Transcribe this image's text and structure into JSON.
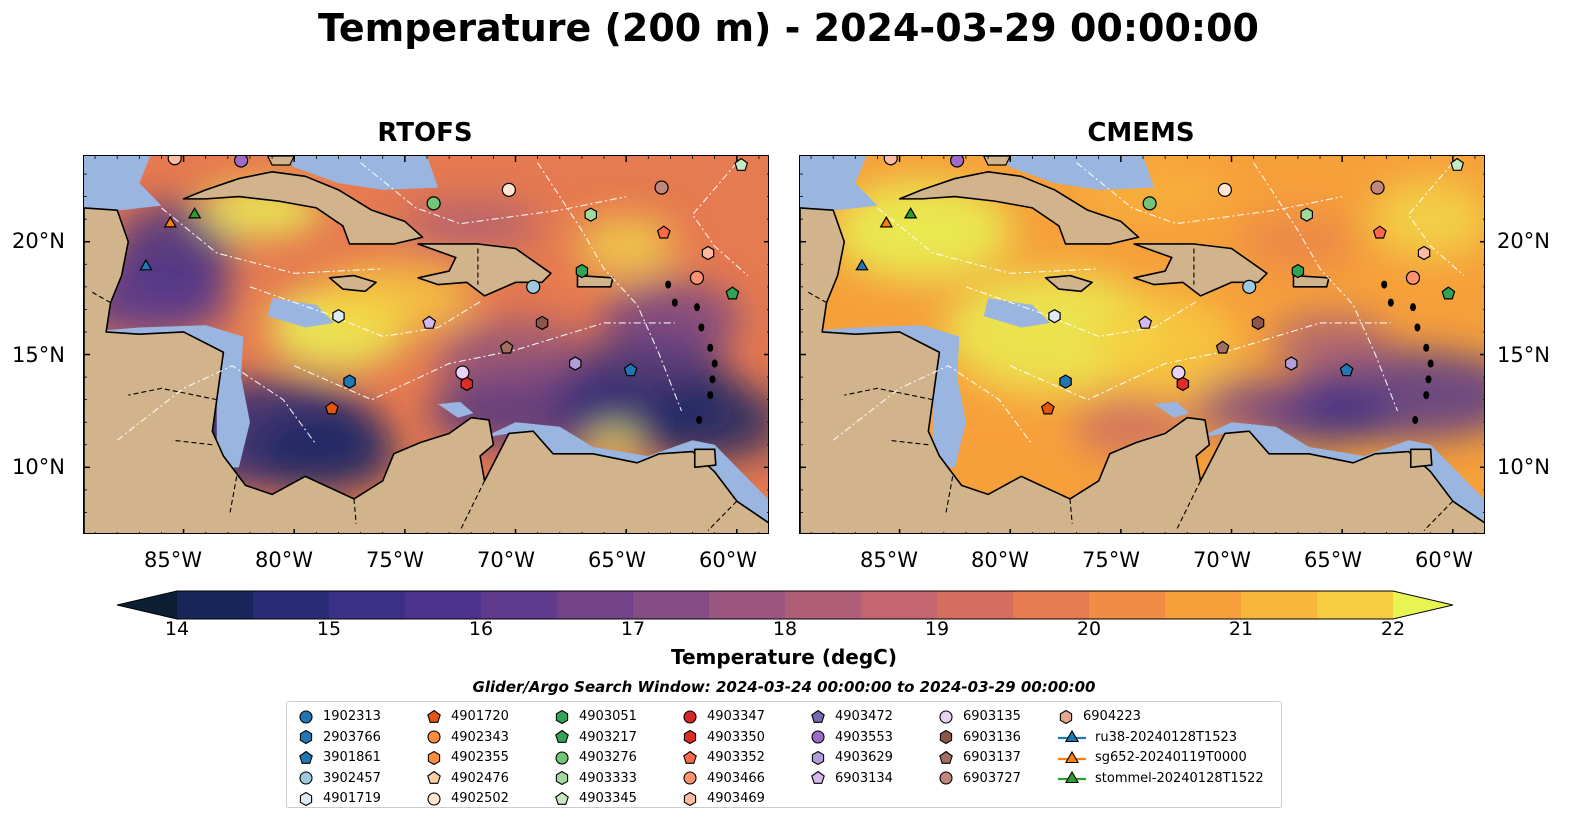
{
  "title": "Temperature (200 m) - 2024-03-29 00:00:00",
  "panels": [
    {
      "title": "RTOFS"
    },
    {
      "title": "CMEMS"
    }
  ],
  "axes": {
    "lat_labels": [
      "20°N",
      "15°N",
      "10°N"
    ],
    "lon_labels": [
      "85°W",
      "80°W",
      "75°W",
      "70°W",
      "65°W",
      "60°W"
    ]
  },
  "colorbar": {
    "label": "Temperature (degC)",
    "ticks": [
      "14",
      "15",
      "16",
      "17",
      "18",
      "19",
      "20",
      "21",
      "22"
    ],
    "colors": [
      "#0b1e33",
      "#17265a",
      "#272c75",
      "#3b2f86",
      "#4d338e",
      "#5f3a8d",
      "#724389",
      "#864d85",
      "#9b567f",
      "#b05e78",
      "#c4666d",
      "#d66e60",
      "#e67a50",
      "#f08c43",
      "#f6a03b",
      "#f8b63b",
      "#f6cc40",
      "#f1e14a",
      "#e8f354"
    ],
    "extend": "both"
  },
  "legend": {
    "title": "Glider/Argo Search Window: 2024-03-24 00:00:00 to 2024-03-29 00:00:00",
    "columns": [
      [
        {
          "label": "1902313",
          "shape": "circle",
          "color": "#1f77b4"
        },
        {
          "label": "2903766",
          "shape": "hexagon",
          "color": "#1f77b4"
        },
        {
          "label": "3901861",
          "shape": "pentagon",
          "color": "#1f77b4"
        },
        {
          "label": "3902457",
          "shape": "circle",
          "color": "#9ecae1"
        },
        {
          "label": "4901719",
          "shape": "hexagon",
          "color": "#deebf7"
        }
      ],
      [
        {
          "label": "4901720",
          "shape": "pentagon",
          "color": "#e6550d"
        },
        {
          "label": "4902343",
          "shape": "circle",
          "color": "#fd8d3c"
        },
        {
          "label": "4902355",
          "shape": "hexagon",
          "color": "#fd8d3c"
        },
        {
          "label": "4902476",
          "shape": "pentagon",
          "color": "#fdd0a2"
        },
        {
          "label": "4902502",
          "shape": "circle",
          "color": "#fee6ce"
        }
      ],
      [
        {
          "label": "4903051",
          "shape": "hexagon",
          "color": "#31a354"
        },
        {
          "label": "4903217",
          "shape": "pentagon",
          "color": "#31a354"
        },
        {
          "label": "4903276",
          "shape": "circle",
          "color": "#74c476"
        },
        {
          "label": "4903333",
          "shape": "hexagon",
          "color": "#a1d99b"
        },
        {
          "label": "4903345",
          "shape": "pentagon",
          "color": "#c7e9c0"
        }
      ],
      [
        {
          "label": "4903347",
          "shape": "circle",
          "color": "#d62728"
        },
        {
          "label": "4903350",
          "shape": "hexagon",
          "color": "#de2d26"
        },
        {
          "label": "4903352",
          "shape": "pentagon",
          "color": "#fb6a4a"
        },
        {
          "label": "4903466",
          "shape": "circle",
          "color": "#fc9272"
        },
        {
          "label": "4903469",
          "shape": "hexagon",
          "color": "#fcbba1"
        }
      ],
      [
        {
          "label": "4903472",
          "shape": "pentagon",
          "color": "#756bb1"
        },
        {
          "label": "4903553",
          "shape": "circle",
          "color": "#9e6ac8"
        },
        {
          "label": "4903629",
          "shape": "hexagon",
          "color": "#b39ddb"
        },
        {
          "label": "6903134",
          "shape": "pentagon",
          "color": "#d4b9ef"
        }
      ],
      [
        {
          "label": "6903135",
          "shape": "circle",
          "color": "#e9d3f5"
        },
        {
          "label": "6903136",
          "shape": "hexagon",
          "color": "#8c564b"
        },
        {
          "label": "6903137",
          "shape": "pentagon",
          "color": "#a0705e"
        },
        {
          "label": "6903727",
          "shape": "circle",
          "color": "#c0877b"
        }
      ],
      [
        {
          "label": "6904223",
          "shape": "hexagon",
          "color": "#e8a890"
        },
        {
          "label": "ru38-20240128T1523",
          "shape": "triangle-line",
          "color": "#1f77b4"
        },
        {
          "label": "sg652-20240119T0000",
          "shape": "triangle-line",
          "color": "#ff7f0e"
        },
        {
          "label": "stommel-20240128T1522",
          "shape": "triangle-line",
          "color": "#2ca02c"
        }
      ]
    ]
  },
  "colors": {
    "land": "#d2b48c",
    "shelf": "#9ab6e0",
    "deep_ocean": "#06233a"
  }
}
